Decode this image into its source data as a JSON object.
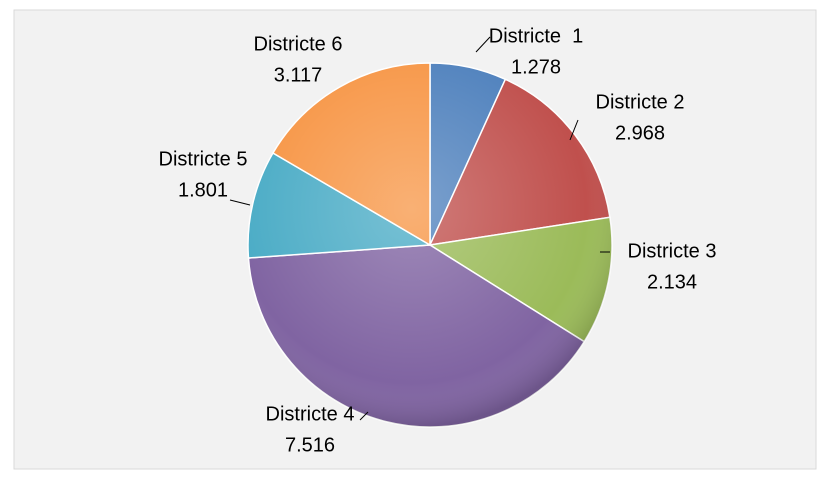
{
  "chart_data": {
    "type": "pie",
    "categories": [
      "Districte  1",
      "Districte 2",
      "Districte 3",
      "Districte 4",
      "Districte 5",
      "Districte 6"
    ],
    "values": [
      1.278,
      2.968,
      2.134,
      7.516,
      1.801,
      3.117
    ],
    "colors": [
      "#4f81bd",
      "#c0504d",
      "#9bbb59",
      "#8064a2",
      "#4bacc6",
      "#f79646"
    ]
  }
}
